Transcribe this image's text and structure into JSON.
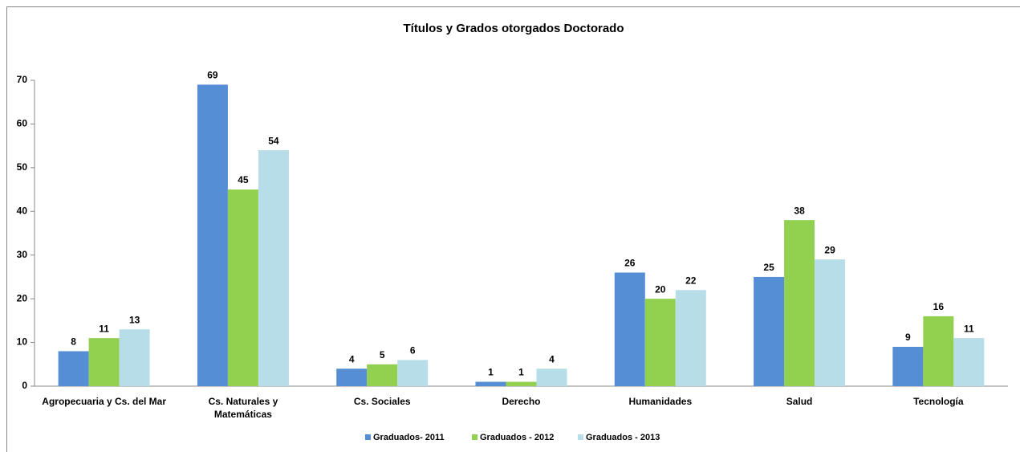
{
  "chart_data": {
    "type": "bar",
    "title": "Títulos y Grados otorgados Doctorado",
    "categories": [
      "Agropecuaria y Cs. del Mar",
      "Cs. Naturales y\nMatemáticas",
      "Cs. Sociales",
      "Derecho",
      "Humanidades",
      "Salud",
      "Tecnología"
    ],
    "series": [
      {
        "name": "Graduados- 2011",
        "color": "#558ed5",
        "values": [
          8,
          69,
          4,
          1,
          26,
          25,
          9
        ]
      },
      {
        "name": "Graduados - 2012",
        "color": "#92d050",
        "values": [
          11,
          45,
          5,
          1,
          20,
          38,
          16
        ]
      },
      {
        "name": "Graduados - 2013",
        "color": "#b7dee8",
        "values": [
          13,
          54,
          6,
          4,
          22,
          29,
          11
        ]
      }
    ],
    "ylim": [
      0,
      70
    ],
    "yticks": [
      0,
      10,
      20,
      30,
      40,
      50,
      60,
      70
    ],
    "grid": false,
    "legend": "bottom"
  }
}
